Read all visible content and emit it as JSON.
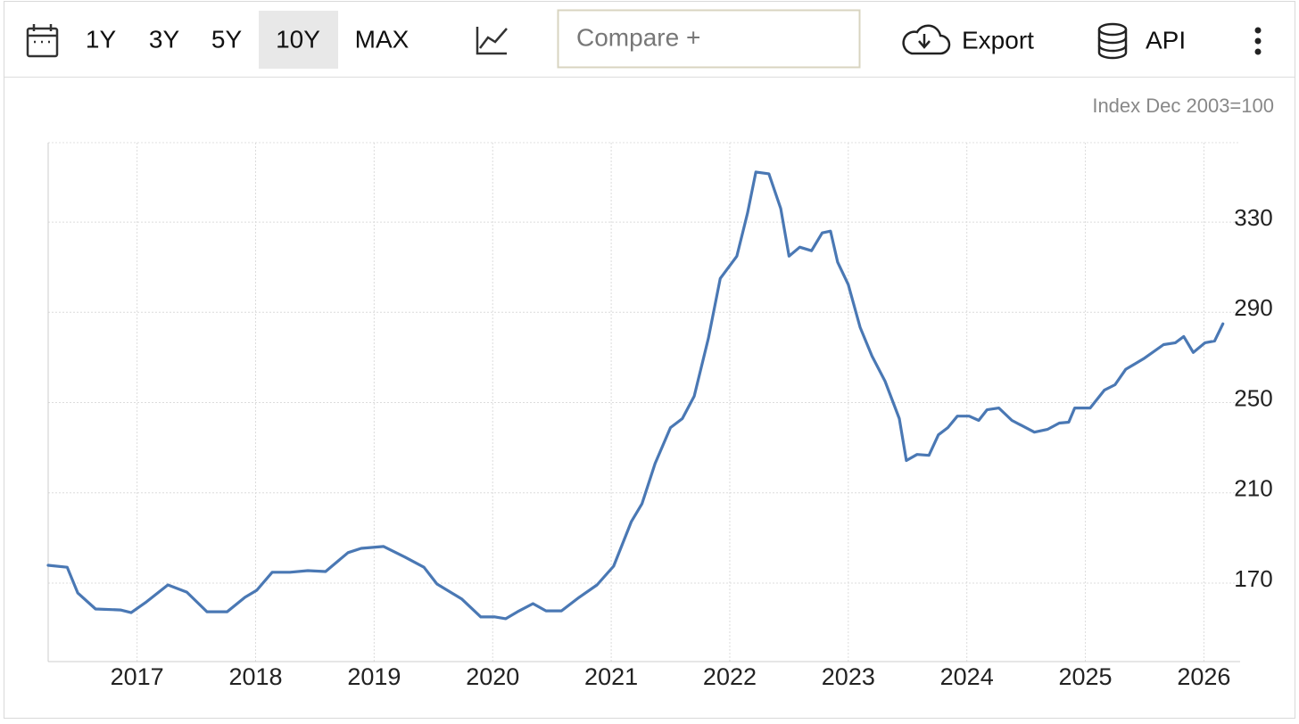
{
  "toolbar": {
    "ranges": [
      "1Y",
      "3Y",
      "5Y",
      "10Y",
      "MAX"
    ],
    "selected": 3,
    "compare": "Compare +",
    "export": "Export",
    "api": "API"
  },
  "chart_data": {
    "type": "line",
    "y_label": "Index Dec 2003=100",
    "color": "#4a78b4",
    "grid": true,
    "x": [
      2016.25,
      2016.41,
      2016.5,
      2016.65,
      2016.86,
      2016.95,
      2017.08,
      2017.26,
      2017.42,
      2017.59,
      2017.76,
      2017.91,
      2018.01,
      2018.14,
      2018.29,
      2018.44,
      2018.59,
      2018.78,
      2018.89,
      2019.08,
      2019.26,
      2019.42,
      2019.53,
      2019.74,
      2019.9,
      2020.02,
      2020.11,
      2020.21,
      2020.34,
      2020.45,
      2020.58,
      2020.73,
      2020.88,
      2021.02,
      2021.17,
      2021.26,
      2021.37,
      2021.5,
      2021.6,
      2021.7,
      2021.82,
      2021.92,
      2022.06,
      2022.15,
      2022.22,
      2022.33,
      2022.43,
      2022.5,
      2022.59,
      2022.69,
      2022.78,
      2022.85,
      2022.91,
      2023.0,
      2023.1,
      2023.2,
      2023.31,
      2023.43,
      2023.49,
      2023.58,
      2023.68,
      2023.76,
      2023.84,
      2023.92,
      2024.02,
      2024.1,
      2024.17,
      2024.27,
      2024.38,
      2024.57,
      2024.68,
      2024.78,
      2024.86,
      2024.91,
      2025.04,
      2025.16,
      2025.25,
      2025.34,
      2025.49,
      2025.66,
      2025.76,
      2025.83,
      2025.91,
      2026.01,
      2026.09,
      2026.16
    ],
    "values": [
      177.9,
      177,
      165.6,
      158.5,
      158.1,
      156.9,
      161.7,
      169.2,
      166,
      157.3,
      157.3,
      163.7,
      166.8,
      174.8,
      174.8,
      175.5,
      175.1,
      183.5,
      185.4,
      186.2,
      181.5,
      177,
      169.6,
      162.9,
      155,
      155,
      154.2,
      157.3,
      160.9,
      157.7,
      157.7,
      163.7,
      169.2,
      177.5,
      197.3,
      205.2,
      223,
      238.9,
      242.9,
      252.8,
      278.5,
      305,
      314.9,
      334,
      352.2,
      351.4,
      336,
      314.9,
      318.9,
      317.3,
      325.2,
      326,
      312.2,
      302.3,
      283.3,
      270.6,
      259.5,
      242.9,
      224.3,
      227,
      226.6,
      235.7,
      238.9,
      244,
      244,
      242.1,
      246.8,
      247.6,
      242.1,
      236.9,
      238.1,
      240.9,
      241.3,
      247.6,
      247.6,
      255.5,
      257.9,
      264.7,
      269.4,
      275.7,
      276.5,
      279.3,
      272.2,
      276.5,
      277.3,
      284.9
    ],
    "xlim": [
      2016.25,
      2026.17
    ],
    "xticks": [
      2017,
      2018,
      2019,
      2020,
      2021,
      2022,
      2023,
      2024,
      2025,
      2026
    ],
    "ylim": [
      135.2,
      365.2
    ],
    "yticks": [
      170,
      210,
      250,
      290,
      330
    ]
  }
}
